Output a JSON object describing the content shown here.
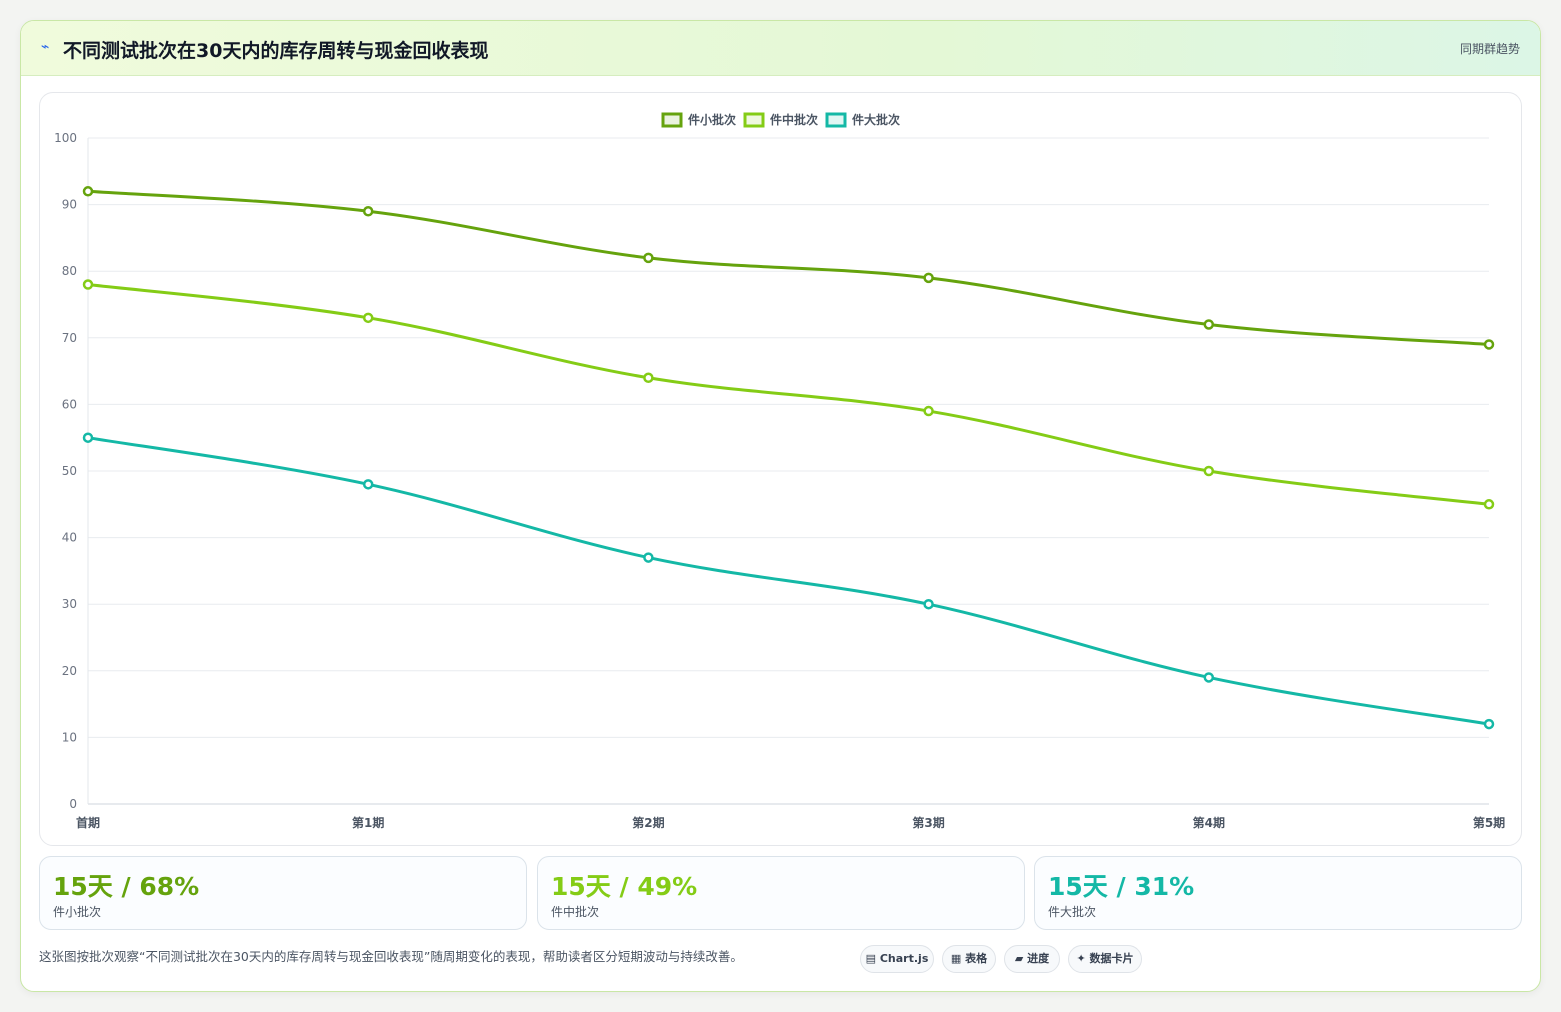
{
  "header": {
    "icon": "⌁",
    "title": "不同测试批次在30天内的库存周转与现金回收表现",
    "tag": "同期群趋势"
  },
  "chart_data": {
    "type": "line",
    "categories": [
      "首期",
      "第1期",
      "第2期",
      "第3期",
      "第4期",
      "第5期"
    ],
    "series": [
      {
        "name": "件小批次",
        "values": [
          92,
          89,
          82,
          79,
          72,
          69
        ],
        "color": "#65a30d"
      },
      {
        "name": "件中批次",
        "values": [
          78,
          73,
          64,
          59,
          50,
          45
        ],
        "color": "#84cc16"
      },
      {
        "name": "件大批次",
        "values": [
          55,
          48,
          37,
          30,
          19,
          12
        ],
        "color": "#14b8a6"
      }
    ],
    "ylim": [
      0,
      100
    ],
    "yticks": [
      0,
      10,
      20,
      30,
      40,
      50,
      60,
      70,
      80,
      90,
      100
    ],
    "grid": true,
    "legend": "top-center"
  },
  "stats": [
    {
      "value": "15天 / 68%",
      "label": "件小批次",
      "color": "#65a30d"
    },
    {
      "value": "15天 / 49%",
      "label": "件中批次",
      "color": "#84cc16"
    },
    {
      "value": "15天 / 31%",
      "label": "件大批次",
      "color": "#14b8a6"
    }
  ],
  "footer": {
    "note": "这张图按批次观察“不同测试批次在30天内的库存周转与现金回收表现”随周期变化的表现，帮助读者区分短期波动与持续改善。",
    "pills": [
      {
        "icon": "▤",
        "label": "Chart.js"
      },
      {
        "icon": "▦",
        "label": "表格"
      },
      {
        "icon": "▰",
        "label": "进度"
      },
      {
        "icon": "✦",
        "label": "数据卡片"
      }
    ]
  }
}
